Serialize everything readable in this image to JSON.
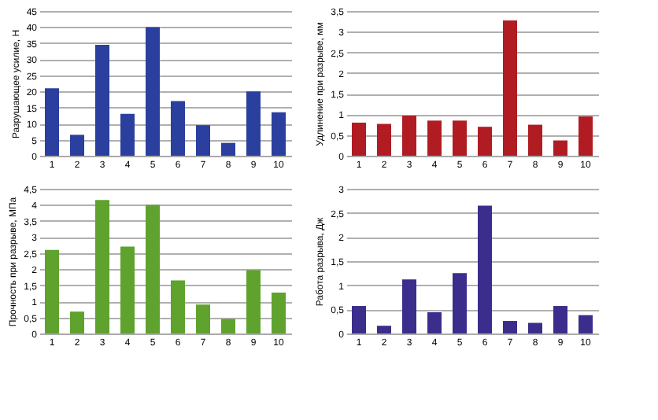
{
  "chart_data": [
    {
      "type": "bar",
      "ylabel": "Разрушающее усилие, Н",
      "categories": [
        "1",
        "2",
        "3",
        "4",
        "5",
        "6",
        "7",
        "8",
        "9",
        "10"
      ],
      "values": [
        21,
        6.5,
        34.5,
        13,
        40,
        17,
        9.5,
        4,
        20,
        13.5
      ],
      "color": "#2a3f9e",
      "ylim": [
        0,
        45
      ],
      "yticks": [
        0,
        5,
        10,
        15,
        20,
        25,
        30,
        35,
        40,
        45
      ],
      "grid": "y"
    },
    {
      "type": "bar",
      "ylabel": "Удлинение при разрыве, мм",
      "categories": [
        "1",
        "2",
        "3",
        "4",
        "5",
        "6",
        "7",
        "8",
        "9",
        "10"
      ],
      "values": [
        0.8,
        0.77,
        0.97,
        0.85,
        0.85,
        0.7,
        3.27,
        0.75,
        0.37,
        0.95
      ],
      "color": "#b01c22",
      "ylim": [
        0,
        3.5
      ],
      "yticks": [
        0,
        {
          "value": 0.5,
          "label": "0,5"
        },
        1,
        {
          "value": 1.5,
          "label": "1,5"
        },
        2,
        {
          "value": 2.5,
          "label": "2,5"
        },
        3,
        {
          "value": 3.5,
          "label": "3,5"
        }
      ],
      "grid": "y"
    },
    {
      "type": "bar",
      "ylabel": "Прочность при разрыве, МПа",
      "categories": [
        "1",
        "2",
        "3",
        "4",
        "5",
        "6",
        "7",
        "8",
        "9",
        "10"
      ],
      "values": [
        2.6,
        0.68,
        4.15,
        2.7,
        4.0,
        1.65,
        0.9,
        0.45,
        1.97,
        1.27
      ],
      "color": "#5fa22e",
      "ylim": [
        0,
        4.5
      ],
      "yticks": [
        0,
        {
          "value": 0.5,
          "label": "0,5"
        },
        1,
        {
          "value": 1.5,
          "label": "1,5"
        },
        2,
        {
          "value": 2.5,
          "label": "2,5"
        },
        3,
        {
          "value": 3.5,
          "label": "3,5"
        },
        4,
        {
          "value": 4.5,
          "label": "4,5"
        }
      ],
      "grid": "y"
    },
    {
      "type": "bar",
      "ylabel": "Работа разрыва, Дж",
      "categories": [
        "1",
        "2",
        "3",
        "4",
        "5",
        "6",
        "7",
        "8",
        "9",
        "10"
      ],
      "values": [
        0.57,
        0.16,
        1.12,
        0.44,
        1.25,
        2.65,
        0.26,
        0.22,
        0.57,
        0.38
      ],
      "color": "#3a2d8c",
      "ylim": [
        0,
        3
      ],
      "yticks": [
        0,
        {
          "value": 0.5,
          "label": "0,5"
        },
        1,
        {
          "value": 1.5,
          "label": "1,5"
        },
        2,
        {
          "value": 2.5,
          "label": "2,5"
        },
        3
      ],
      "grid": "y"
    }
  ]
}
